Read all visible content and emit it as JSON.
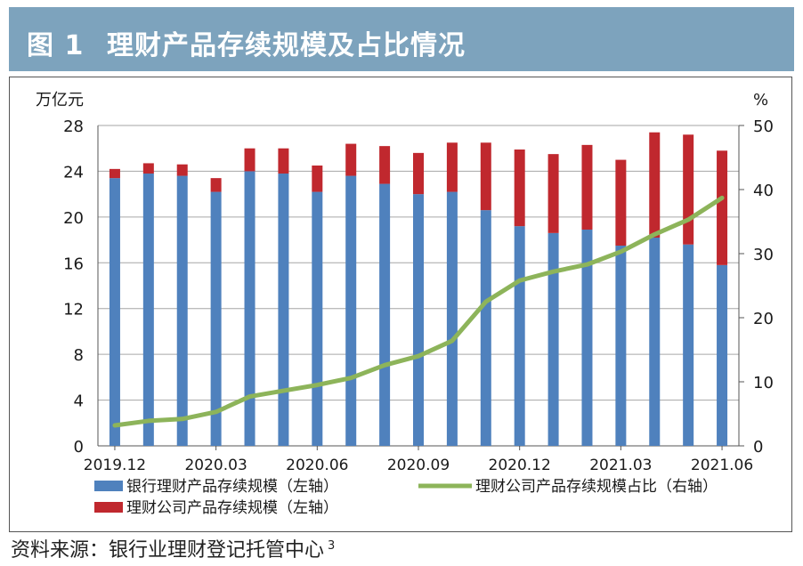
{
  "figure": {
    "label": "图 1",
    "title": "理财产品存续规模及占比情况"
  },
  "footer": {
    "source": "资料来源：银行业理财登记托管中心",
    "note": "3"
  },
  "colors": {
    "header": "#7da3bd",
    "bank": "#4f81bd",
    "wmc": "#c0282e",
    "share": "#8db45a"
  },
  "chart_data": {
    "type": "bar",
    "stacked": true,
    "left_unit": "万亿元",
    "right_unit": "%",
    "ylim_left": [
      0,
      28
    ],
    "yticks_left": [
      "0",
      "4",
      "8",
      "12",
      "16",
      "20",
      "24",
      "28"
    ],
    "ylim_right": [
      0,
      50
    ],
    "yticks_right": [
      "0",
      "10",
      "20",
      "30",
      "40",
      "50"
    ],
    "categories": [
      "2019.12",
      "2020.01",
      "2020.02",
      "2020.03",
      "2020.04",
      "2020.05",
      "2020.06",
      "2020.07",
      "2020.08",
      "2020.09",
      "2020.10",
      "2020.11",
      "2020.12",
      "2021.01",
      "2021.02",
      "2021.03",
      "2021.04",
      "2021.05",
      "2021.06"
    ],
    "xtick_labels": [
      "2019.12",
      "2020.03",
      "2020.06",
      "2020.09",
      "2020.12",
      "2021.03",
      "2021.06"
    ],
    "series": [
      {
        "name": "银行理财产品存续规模（左轴）",
        "axis": "left",
        "kind": "bar",
        "values": [
          23.4,
          23.8,
          23.6,
          22.2,
          24.0,
          23.8,
          22.2,
          23.6,
          22.9,
          22.0,
          22.2,
          20.6,
          19.2,
          18.6,
          18.9,
          17.5,
          18.2,
          17.6,
          15.8
        ]
      },
      {
        "name": "理财公司产品存续规模（左轴）",
        "axis": "left",
        "kind": "bar",
        "values": [
          0.8,
          0.9,
          1.0,
          1.2,
          2.0,
          2.2,
          2.3,
          2.8,
          3.3,
          3.6,
          4.3,
          5.9,
          6.7,
          6.9,
          7.4,
          7.5,
          9.2,
          9.6,
          10.0
        ]
      },
      {
        "name": "理财公司产品存续规模占比（右轴）",
        "axis": "right",
        "kind": "line",
        "values": [
          3.2,
          3.9,
          4.2,
          5.3,
          7.7,
          8.6,
          9.5,
          10.6,
          12.6,
          14.0,
          16.4,
          22.5,
          25.8,
          27.2,
          28.3,
          30.3,
          33.0,
          35.3,
          38.7
        ]
      }
    ]
  }
}
